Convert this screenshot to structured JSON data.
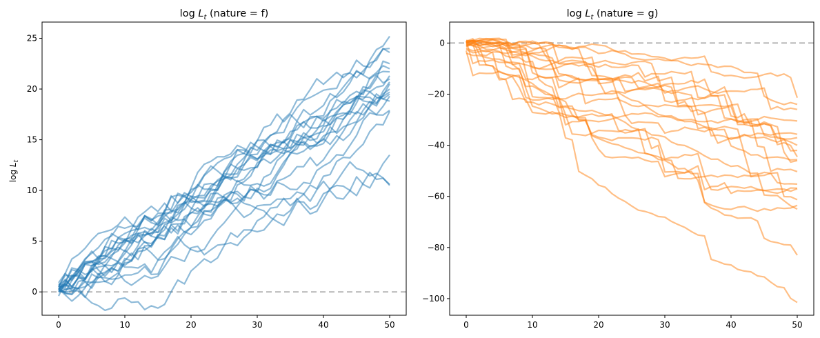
{
  "chart_data": [
    {
      "type": "line",
      "title": "log L_t (nature = f)",
      "title_parts": {
        "pre": "log ",
        "var": "L",
        "sub": "t",
        "post": " (nature = f)"
      },
      "xlabel": "",
      "ylabel": "log L_t",
      "ylabel_parts": {
        "pre": "log ",
        "var": "L",
        "sub": "t"
      },
      "xlim": [
        -2.5,
        52.5
      ],
      "ylim": [
        -2.3,
        26.6
      ],
      "xticks": [
        0,
        10,
        20,
        30,
        40,
        50
      ],
      "yticks": [
        0,
        5,
        10,
        15,
        20,
        25
      ],
      "color": "#1f77b4",
      "line_alpha": 0.5,
      "reference_line": {
        "y": 0,
        "color": "#bdbdbd",
        "style": "dashed"
      },
      "n_series": 20,
      "series_endpoints_x": [
        0,
        50
      ],
      "final_values": [
        25.2,
        24.0,
        23.6,
        22.5,
        21.7,
        21.3,
        21.0,
        20.7,
        20.5,
        20.0,
        19.7,
        19.5,
        19.3,
        18.8,
        17.9,
        17.8,
        13.5,
        10.6,
        10.5,
        22.0
      ],
      "initial_values": [
        0.3,
        0.6,
        0.2,
        0.8,
        0.5,
        0.1,
        0.4,
        0.7,
        0.0,
        0.9,
        0.3,
        0.5,
        0.2,
        0.6,
        0.4,
        0.1,
        -0.4,
        0.3,
        0.0,
        0.5
      ]
    },
    {
      "type": "line",
      "title": "log L_t (nature = g)",
      "title_parts": {
        "pre": "log ",
        "var": "L",
        "sub": "t",
        "post": " (nature = g)"
      },
      "xlabel": "",
      "ylabel": "",
      "xlim": [
        -2.5,
        52.5
      ],
      "ylim": [
        -106.5,
        8.2
      ],
      "xticks": [
        0,
        10,
        20,
        30,
        40,
        50
      ],
      "yticks": [
        0,
        -20,
        -40,
        -60,
        -80,
        -100
      ],
      "color": "#ff7f0e",
      "line_alpha": 0.5,
      "reference_line": {
        "y": 0,
        "color": "#bdbdbd",
        "style": "dashed"
      },
      "n_series": 20,
      "series_endpoints_x": [
        0,
        50
      ],
      "final_values": [
        -21.4,
        -24.0,
        -26.0,
        -30.5,
        -35.7,
        -40.0,
        -44.5,
        -45.6,
        -50.3,
        -55.2,
        -56.8,
        -57.0,
        -61.3,
        -63.5,
        -65.0,
        -83.0,
        -101.5,
        -46.0,
        -42.0,
        -37.0
      ],
      "initial_values": [
        0.5,
        0.2,
        -0.5,
        0.8,
        -1.0,
        0.0,
        -2.0,
        1.0,
        -3.0,
        0.3,
        -1.5,
        0.6,
        -2.5,
        -0.2,
        0.9,
        -4.0,
        0.1,
        -1.2,
        -0.8,
        0.4
      ]
    }
  ]
}
